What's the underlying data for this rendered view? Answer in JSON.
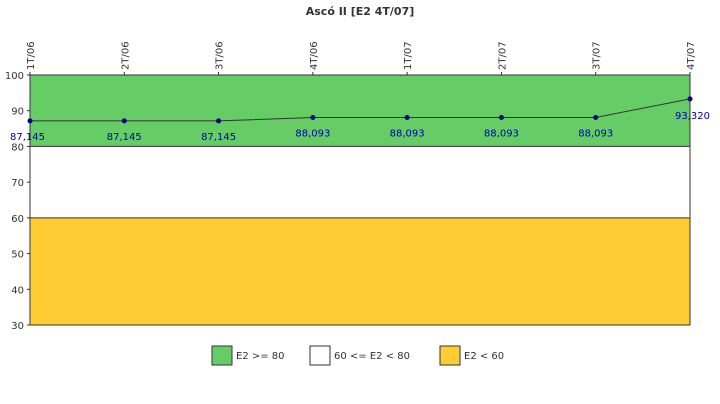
{
  "chart_data": {
    "type": "line",
    "title": "Ascó II [E2 4T/07]",
    "categories": [
      "1T/06",
      "2T/06",
      "3T/06",
      "4T/06",
      "1T/07",
      "2T/07",
      "3T/07",
      "4T/07"
    ],
    "series": [
      {
        "values": [
          87.145,
          87.145,
          87.145,
          88.093,
          88.093,
          88.093,
          88.093,
          93.32
        ],
        "labels": [
          "87,145",
          "87,145",
          "87,145",
          "88,093",
          "88,093",
          "88,093",
          "88,093",
          "93,320"
        ],
        "color": "#00008b"
      }
    ],
    "ylim": [
      30,
      100
    ],
    "yticks": [
      30,
      40,
      50,
      60,
      70,
      80,
      90,
      100
    ],
    "bands": [
      {
        "from": 80,
        "to": 100,
        "color": "#66cc66",
        "legend": "E2 >= 80"
      },
      {
        "from": 60,
        "to": 80,
        "color": "#ffffff",
        "legend": "60 <= E2 < 80"
      },
      {
        "from": 30,
        "to": 60,
        "color": "#ffcc33",
        "legend": "E2 < 60"
      }
    ],
    "legend_position": "bottom-center",
    "grid": false
  }
}
